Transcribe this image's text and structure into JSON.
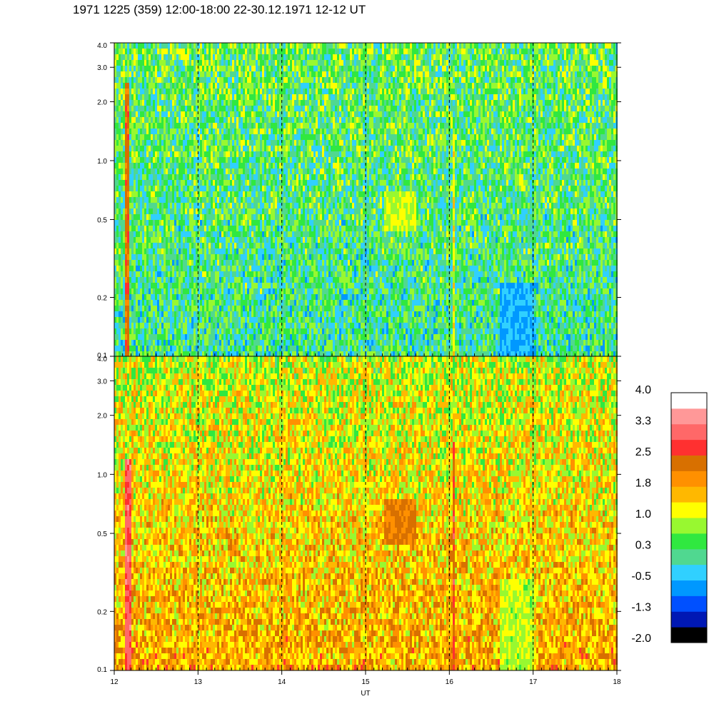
{
  "title": "1971 1225 (359) 12:00-18:00 22-30.12.1971  12-12 UT",
  "chart_data": {
    "type": "heatmap",
    "panels": [
      {
        "name": "",
        "y_scale": "log",
        "ylim": [
          0.1,
          4.0
        ],
        "yticks": [
          "4.0",
          "3.0",
          "2.0",
          "1.0",
          "0.5",
          "0.2",
          "0.1"
        ],
        "base_level": 0.3,
        "features": [
          {
            "kind": "band",
            "x": 12.15,
            "width": 0.05,
            "from": 0.1,
            "to": 2.5,
            "value": 2.3
          },
          {
            "kind": "band",
            "x": 15.08,
            "width": 0.02,
            "from": 0.1,
            "to": 2.0,
            "value": 1.8
          },
          {
            "kind": "band",
            "x": 16.03,
            "width": 0.02,
            "from": 0.1,
            "to": 1.5,
            "value": 1.2
          },
          {
            "kind": "patch",
            "x": [
              15.2,
              15.6
            ],
            "y": [
              0.45,
              0.7
            ],
            "value": 1.0
          },
          {
            "kind": "patch",
            "x": [
              16.6,
              17.0
            ],
            "y": [
              0.1,
              0.25
            ],
            "value": -0.5
          }
        ]
      },
      {
        "name": "",
        "y_scale": "log",
        "ylim": [
          0.1,
          4.0
        ],
        "yticks": [
          "4.0",
          "3.0",
          "2.0",
          "1.0",
          "0.5",
          "0.2",
          "0.1"
        ],
        "base_level": 1.4,
        "features": [
          {
            "kind": "band",
            "x": 12.15,
            "width": 0.08,
            "from": 0.1,
            "to": 1.2,
            "value": 3.0
          },
          {
            "kind": "band",
            "x": 15.08,
            "width": 0.02,
            "from": 0.1,
            "to": 3.0,
            "value": 2.6
          },
          {
            "kind": "band",
            "x": 16.03,
            "width": 0.02,
            "from": 0.1,
            "to": 1.5,
            "value": 2.6
          },
          {
            "kind": "patch",
            "x": [
              15.2,
              15.6
            ],
            "y": [
              0.45,
              0.75
            ],
            "value": 2.2
          },
          {
            "kind": "patch",
            "x": [
              16.6,
              17.0
            ],
            "y": [
              0.1,
              0.3
            ],
            "value": 0.9
          }
        ]
      }
    ],
    "x": {
      "label": "UT",
      "range": [
        12,
        18
      ],
      "ticks": [
        "12",
        "13",
        "14",
        "15",
        "16",
        "17",
        "18"
      ],
      "dashed_lines": [
        13,
        14,
        15,
        16,
        17
      ]
    },
    "colorbar": {
      "labels": [
        "4.0",
        "3.3",
        "2.5",
        "1.8",
        "1.0",
        "0.3",
        "-0.5",
        "-1.3",
        "-2.0"
      ],
      "range": [
        -2.0,
        4.0
      ],
      "colors": [
        "#000000",
        "#0018b4",
        "#0050ff",
        "#0098ff",
        "#30d0ff",
        "#50d890",
        "#30e840",
        "#98f830",
        "#ffff00",
        "#ffb800",
        "#ff9000",
        "#d87000",
        "#ff3030",
        "#ff6868",
        "#ff9898",
        "#ffffff"
      ]
    }
  }
}
